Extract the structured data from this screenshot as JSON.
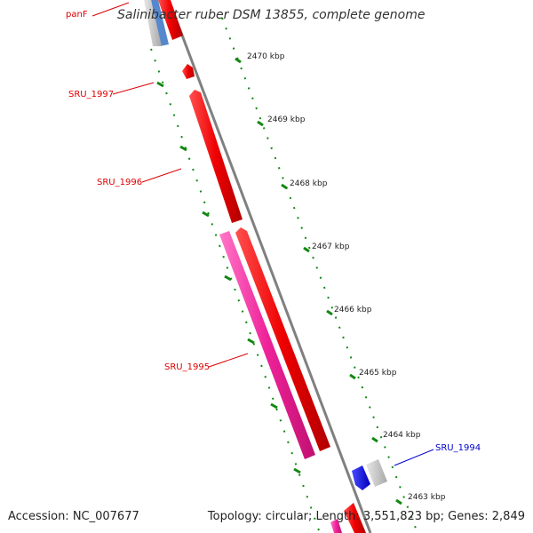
{
  "title": "Salinibacter ruber DSM 13855, complete genome",
  "accession": "Accession: NC_007677",
  "summary": "Topology: circular; Length: 3,551,823 bp; Genes: 2,849",
  "scale_labels": [
    "2470 kbp",
    "2469 kbp",
    "2468 kbp",
    "2467 kbp",
    "2466 kbp",
    "2465 kbp",
    "2464 kbp",
    "2463 kbp"
  ],
  "gene_labels": [
    {
      "text": "panF",
      "color": "#dd0000"
    },
    {
      "text": "SRU_1997",
      "color": "#dd0000"
    },
    {
      "text": "SRU_1996",
      "color": "#dd0000"
    },
    {
      "text": "SRU_1995",
      "color": "#dd0000"
    },
    {
      "text": "SRU_1994",
      "color": "#0000cc"
    }
  ],
  "colors": {
    "backbone": "#808080",
    "forward_gene": "#ee0000",
    "reverse_gene": "#ee2299",
    "highlight_gene": "#0000ee",
    "other_gene": "#bbbbbb",
    "tick": "#118811"
  }
}
